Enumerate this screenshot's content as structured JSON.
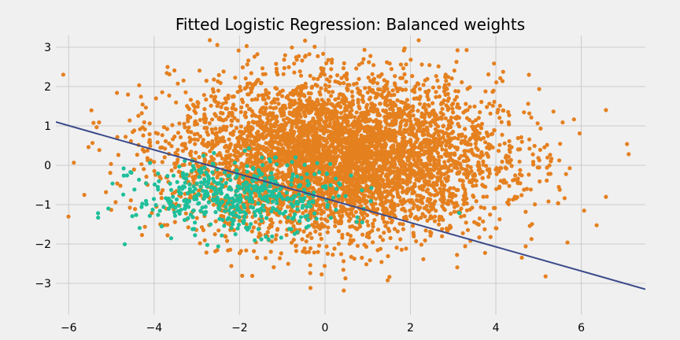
{
  "chart_data": {
    "type": "scatter",
    "title": "Fitted Logistic Regression: Balanced weights",
    "xlabel": "",
    "ylabel": "",
    "xlim": [
      -6.3,
      7.5
    ],
    "ylim": [
      -3.8,
      3.3
    ],
    "x_ticks": [
      -6,
      -4,
      -2,
      0,
      2,
      4,
      6
    ],
    "y_ticks": [
      -3,
      -2,
      -1,
      0,
      1,
      2,
      3
    ],
    "grid": true,
    "legend": "none",
    "colors": {
      "background": "#f0f0f0",
      "grid": "#cbcbcb",
      "majority_points": "#e5801f",
      "minority_points": "#1ebf9a",
      "decision_line": "#3b4a8a"
    },
    "series": [
      {
        "kind": "scatter",
        "color_key": "majority_points",
        "approx_count": 5000,
        "center": [
          0.3,
          0.2
        ],
        "spread": [
          1.9,
          1.0
        ]
      },
      {
        "kind": "scatter",
        "color_key": "minority_points",
        "approx_count": 500,
        "center": [
          -2.0,
          -0.8
        ],
        "spread": [
          1.2,
          0.45
        ]
      },
      {
        "kind": "line",
        "color_key": "decision_line",
        "points": [
          [
            -6.3,
            1.1
          ],
          [
            7.5,
            -3.15
          ]
        ]
      }
    ]
  }
}
